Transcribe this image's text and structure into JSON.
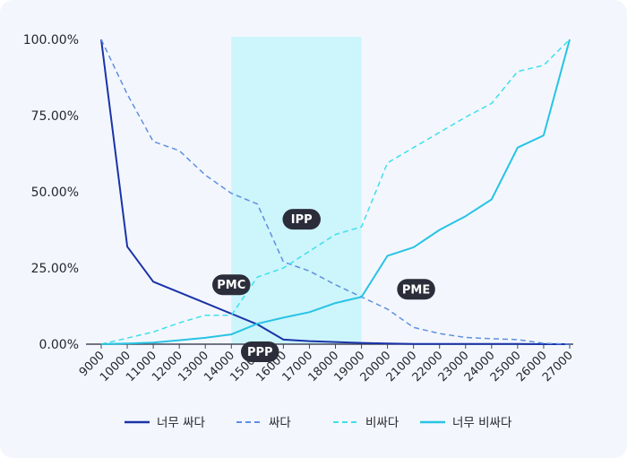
{
  "chart_data": {
    "type": "line",
    "title": "",
    "xlabel": "",
    "ylabel": "",
    "x": [
      9000,
      10000,
      11000,
      12000,
      13000,
      14000,
      15000,
      16000,
      17000,
      18000,
      19000,
      20000,
      21000,
      22000,
      23000,
      24000,
      25000,
      26000,
      27000
    ],
    "x_tick_labels": [
      "9000",
      "10000",
      "11000",
      "12000",
      "13000",
      "14000",
      "15000",
      "16000",
      "17000",
      "18000",
      "19000",
      "20000",
      "21000",
      "22000",
      "23000",
      "24000",
      "25000",
      "26000",
      "27000"
    ],
    "y_tick_labels": [
      "0.00%",
      "25.00%",
      "50.00%",
      "75.00%",
      "100.00%"
    ],
    "ylim": [
      0,
      100
    ],
    "xlim": [
      9000,
      27000
    ],
    "grid": false,
    "legend_position": "bottom",
    "highlight_band": {
      "x_start": 14000,
      "x_end": 19000,
      "color": "#cdf5fc"
    },
    "series": [
      {
        "name": "너무 싸다",
        "color": "#1a33a8",
        "dashed": false,
        "values": [
          100,
          32,
          20.5,
          17,
          13.5,
          10,
          6.5,
          1.5,
          1,
          0.7,
          0.4,
          0.2,
          0.1,
          0.1,
          0.1,
          0.1,
          0.1,
          0,
          0
        ]
      },
      {
        "name": "싸다",
        "color": "#5f8fe0",
        "dashed": true,
        "values": [
          100,
          82,
          66.5,
          63.5,
          55.5,
          49.5,
          46,
          27,
          24,
          19.5,
          15.5,
          11.5,
          5.5,
          3.5,
          2.2,
          1.8,
          1.5,
          0.3,
          0
        ]
      },
      {
        "name": "비싸다",
        "color": "#3ee0ec",
        "dashed": true,
        "values": [
          0,
          2,
          4,
          7,
          9.5,
          9.5,
          22,
          25,
          30.5,
          36,
          38.5,
          59.5,
          64.5,
          69.5,
          74.5,
          79,
          89.5,
          91.5,
          100
        ]
      },
      {
        "name": "너무 비싸다",
        "color": "#28c3e4",
        "dashed": false,
        "values": [
          0,
          0.2,
          0.5,
          1.3,
          2.1,
          3.2,
          6.7,
          8.7,
          10.5,
          13.5,
          15.5,
          29,
          31.8,
          37.5,
          42,
          47.5,
          64.5,
          68.5,
          100
        ]
      }
    ],
    "annotations": [
      {
        "label": "PMC",
        "x": 14000,
        "y": 19.5
      },
      {
        "label": "IPP",
        "x": 16700,
        "y": 41
      },
      {
        "label": "PME",
        "x": 21100,
        "y": 18
      },
      {
        "label": "PPP",
        "x": 15100,
        "y": -2.5
      }
    ]
  }
}
